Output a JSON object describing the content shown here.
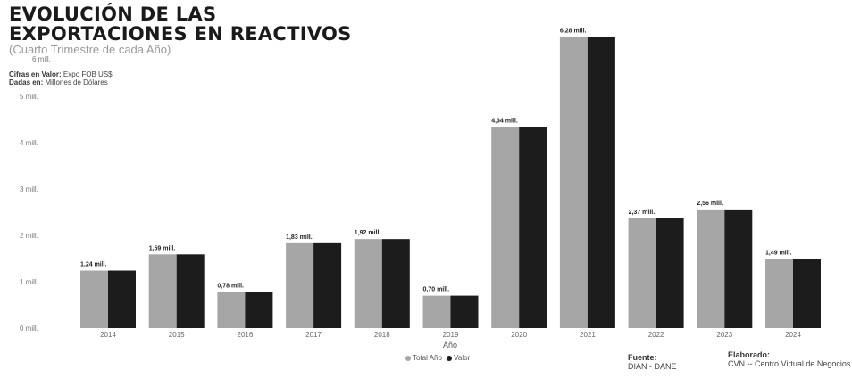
{
  "chart_data": {
    "type": "bar",
    "title_line1": "EVOLUCIÓN DE LAS",
    "title_line2": "EXPORTACIONES EN REACTIVOS",
    "subtitle": "(Cuarto Trimestre de cada Año)",
    "xlabel": "Año",
    "ylim": [
      0,
      6
    ],
    "yticks": [
      {
        "value": 0,
        "label": "0 mill."
      },
      {
        "value": 1,
        "label": "1 mill."
      },
      {
        "value": 2,
        "label": "2 mill."
      },
      {
        "value": 3,
        "label": "3 mill."
      },
      {
        "value": 4,
        "label": "4 mill."
      },
      {
        "value": 5,
        "label": "5 mill."
      },
      {
        "value": 6,
        "label": "6 mill."
      }
    ],
    "categories": [
      "2014",
      "2015",
      "2016",
      "2017",
      "2018",
      "2019",
      "2020",
      "2021",
      "2022",
      "2023",
      "2024"
    ],
    "series": [
      {
        "name": "Total Año",
        "color": "#a6a6a6",
        "values": [
          1.24,
          1.59,
          0.78,
          1.83,
          1.92,
          0.7,
          4.34,
          6.28,
          2.37,
          2.56,
          1.49
        ]
      },
      {
        "name": "Valor",
        "color": "#1c1c1c",
        "values": [
          1.24,
          1.59,
          0.78,
          1.83,
          1.92,
          0.7,
          4.34,
          6.28,
          2.37,
          2.56,
          1.49
        ]
      }
    ],
    "data_labels": [
      "1,24 mill.",
      "1,59 mill.",
      "0,78 mill.",
      "1,83 mill.",
      "1,92 mill.",
      "0,70 mill.",
      "4,34 mill.",
      "6,28 mill.",
      "2,37 mill.",
      "2,56 mill.",
      "1,49 mill."
    ],
    "legend_position": "bottom-center",
    "grid": false
  },
  "meta": {
    "cifras_label": "Cifras en Valor:",
    "cifras_value": "Expo FOB US$",
    "dadas_label": "Dadas en:",
    "dadas_value": "Millones de Dólares"
  },
  "credits": {
    "fuente_head": "Fuente:",
    "fuente_value": "DIAN - DANE",
    "elaborado_head": "Elaborado:",
    "elaborado_value": "CVN -- Centro Virtual de Negocios"
  }
}
